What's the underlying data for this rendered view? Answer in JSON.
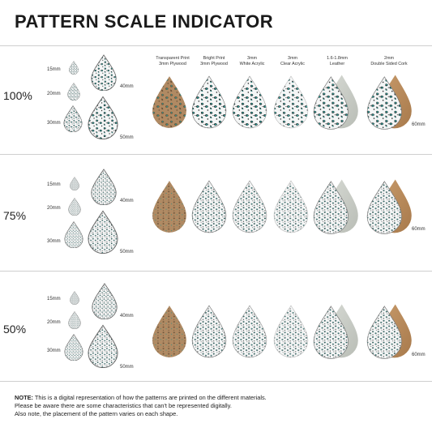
{
  "title": "PATTERN SCALE INDICATOR",
  "columns": [
    {
      "line1": "Transparent Print",
      "line2": "3mm Plywood"
    },
    {
      "line1": "Bright Print",
      "line2": "3mm Plywood"
    },
    {
      "line1": "3mm",
      "line2": "White Acrylic"
    },
    {
      "line1": "3mm",
      "line2": "Clear Acrylic"
    },
    {
      "line1": "1.6-1.8mm",
      "line2": "Leather"
    },
    {
      "line1": "2mm",
      "line2": "Double Sided Cork"
    }
  ],
  "rows": [
    {
      "scale": "100%",
      "s15": "15mm",
      "s20": "20mm",
      "s30": "30mm",
      "s40": "40mm",
      "s50": "50mm",
      "s60": "60mm"
    },
    {
      "scale": "75%",
      "s15": "15mm",
      "s20": "20mm",
      "s30": "30mm",
      "s40": "40mm",
      "s50": "50mm",
      "s60": "60mm"
    },
    {
      "scale": "50%",
      "s15": "15mm",
      "s20": "20mm",
      "s30": "30mm",
      "s40": "40mm",
      "s50": "50mm",
      "s60": "60mm"
    }
  ],
  "colors": {
    "teal": "#2aa5a0",
    "plywood": "#b08a63",
    "leather": "#c9ccc6",
    "cork": "#b98a5c"
  },
  "note": {
    "label": "NOTE:",
    "line1": " This is a digital representation of how the patterns are printed on the different materials.",
    "line2": "Please be aware there are some characteristics that can't be represented digitally.",
    "line3": "Also note, the placement of the pattern varies on each shape."
  }
}
